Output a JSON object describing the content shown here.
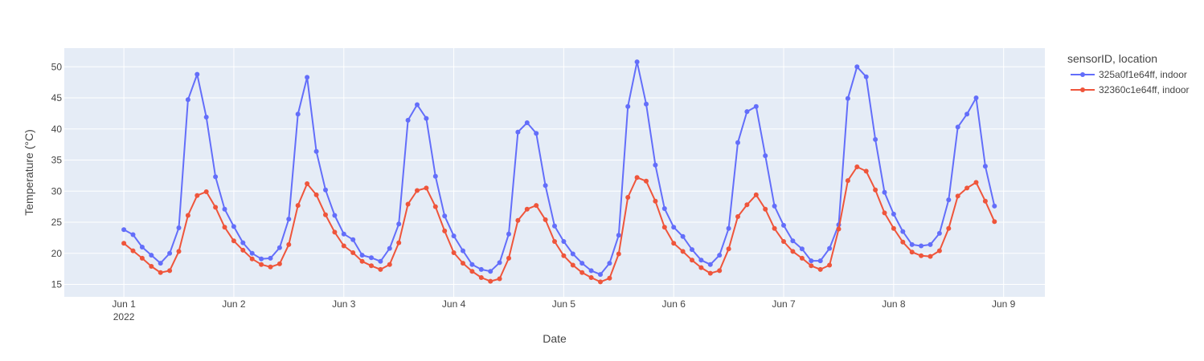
{
  "chart_data": {
    "type": "line",
    "xlabel": "Date",
    "ylabel": "Temperature (°C)",
    "x_start": "2022-06-01",
    "x_step_hours": 2,
    "xlim": [
      "2022-05-31T11:00",
      "2022-06-09T09:00"
    ],
    "ylim": [
      13,
      53
    ],
    "x_ticks": [
      {
        "label": "Jun 1",
        "sublabel": "2022",
        "date": "2022-06-01"
      },
      {
        "label": "Jun 2",
        "sublabel": "",
        "date": "2022-06-02"
      },
      {
        "label": "Jun 3",
        "sublabel": "",
        "date": "2022-06-03"
      },
      {
        "label": "Jun 4",
        "sublabel": "",
        "date": "2022-06-04"
      },
      {
        "label": "Jun 5",
        "sublabel": "",
        "date": "2022-06-05"
      },
      {
        "label": "Jun 6",
        "sublabel": "",
        "date": "2022-06-06"
      },
      {
        "label": "Jun 7",
        "sublabel": "",
        "date": "2022-06-07"
      },
      {
        "label": "Jun 8",
        "sublabel": "",
        "date": "2022-06-08"
      },
      {
        "label": "Jun 9",
        "sublabel": "",
        "date": "2022-06-09"
      }
    ],
    "y_ticks": [
      15,
      20,
      25,
      30,
      35,
      40,
      45,
      50
    ],
    "grid": true,
    "legend": {
      "title": "sensorID, location",
      "placement": "top-right"
    },
    "series": [
      {
        "name": "325a0f1e64ff, indoor",
        "color": "#636efa",
        "values": [
          23.8,
          23.0,
          21.0,
          19.7,
          18.4,
          20.0,
          24.1,
          44.7,
          48.8,
          41.9,
          32.3,
          27.1,
          24.3,
          21.7,
          20.0,
          19.1,
          19.2,
          20.9,
          25.5,
          42.4,
          48.3,
          36.4,
          30.2,
          26.1,
          23.1,
          22.2,
          19.7,
          19.3,
          18.7,
          20.8,
          24.7,
          41.4,
          43.9,
          41.7,
          32.4,
          26.0,
          22.8,
          20.4,
          18.2,
          17.4,
          17.1,
          18.5,
          23.1,
          39.5,
          41.0,
          39.3,
          30.9,
          24.4,
          21.9,
          19.9,
          18.4,
          17.2,
          16.6,
          18.4,
          22.9,
          43.6,
          50.8,
          44.0,
          34.2,
          27.2,
          24.2,
          22.7,
          20.6,
          18.9,
          18.2,
          19.7,
          24.0,
          37.8,
          42.8,
          43.6,
          35.7,
          27.6,
          24.5,
          22.0,
          20.7,
          18.8,
          18.8,
          20.8,
          24.6,
          44.9,
          50.0,
          48.4,
          38.3,
          29.8,
          26.3,
          23.5,
          21.4,
          21.2,
          21.4,
          23.2,
          28.6,
          40.3,
          42.4,
          45.0,
          34.0,
          27.6
        ]
      },
      {
        "name": "32360c1e64ff, indoor",
        "color": "#ef553b",
        "values": [
          21.6,
          20.4,
          19.2,
          17.9,
          16.9,
          17.2,
          20.3,
          26.1,
          29.3,
          29.9,
          27.4,
          24.2,
          22.0,
          20.5,
          19.1,
          18.2,
          17.8,
          18.3,
          21.4,
          27.7,
          31.2,
          29.4,
          26.2,
          23.4,
          21.2,
          20.1,
          18.7,
          18.0,
          17.4,
          18.2,
          21.7,
          27.9,
          30.1,
          30.5,
          27.5,
          23.6,
          20.1,
          18.4,
          17.1,
          16.1,
          15.5,
          15.9,
          19.2,
          25.3,
          27.1,
          27.7,
          25.4,
          21.9,
          19.6,
          18.1,
          16.9,
          16.1,
          15.4,
          16.0,
          19.9,
          29.0,
          32.2,
          31.6,
          28.4,
          24.2,
          21.6,
          20.3,
          18.9,
          17.7,
          16.8,
          17.2,
          20.7,
          25.9,
          27.8,
          29.4,
          27.1,
          24.0,
          21.9,
          20.3,
          19.2,
          18.0,
          17.4,
          18.1,
          23.9,
          31.7,
          33.9,
          33.2,
          30.2,
          26.5,
          24.0,
          21.8,
          20.2,
          19.6,
          19.5,
          20.4,
          24.0,
          29.2,
          30.5,
          31.4,
          28.4,
          25.1
        ]
      }
    ]
  }
}
